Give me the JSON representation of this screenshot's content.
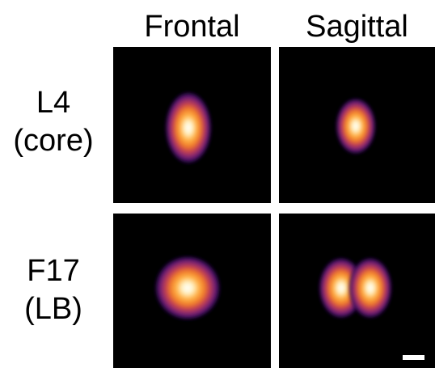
{
  "columns": {
    "frontal": "Frontal",
    "sagittal": "Sagittal"
  },
  "rows": [
    {
      "name": "L4",
      "detail": "(core)"
    },
    {
      "name": "F17",
      "detail": "(LB)"
    }
  ],
  "colormap": [
    "#000000",
    "#1a0b3d",
    "#4a0f6b",
    "#8a2a6e",
    "#c43f4f",
    "#f07a2a",
    "#ffb347",
    "#fff3c8",
    "#ffffff"
  ],
  "panels": [
    {
      "row": "L4",
      "column": "Frontal",
      "shape": "vertical ellipse"
    },
    {
      "row": "L4",
      "column": "Sagittal",
      "shape": "small vertical ellipse"
    },
    {
      "row": "F17",
      "column": "Frontal",
      "shape": "round blob"
    },
    {
      "row": "F17",
      "column": "Sagittal",
      "shape": "two lobes"
    }
  ],
  "scale_bar_color": "#ffffff"
}
